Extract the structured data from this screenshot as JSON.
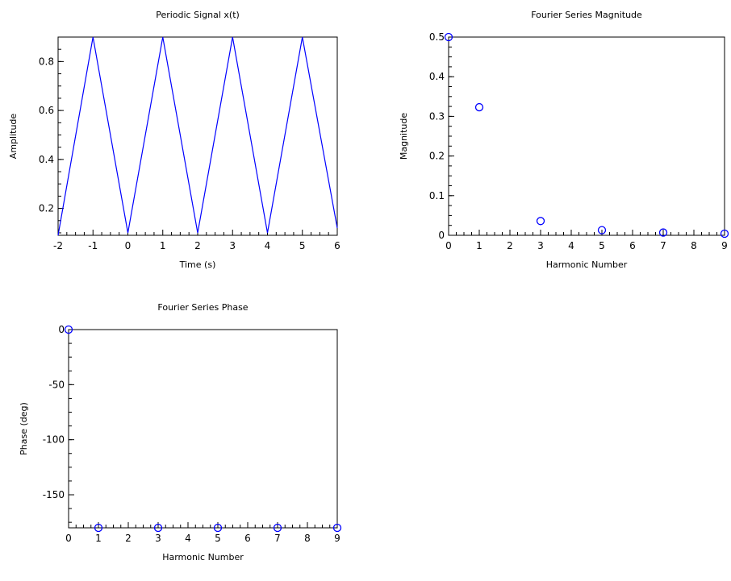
{
  "chart_data": [
    {
      "type": "line",
      "title": "Periodic Signal x(t)",
      "xlabel": "Time (s)",
      "ylabel": "Amplitude",
      "xlim": [
        -2,
        6
      ],
      "ylim": [
        0.09,
        0.9
      ],
      "xticks": [
        "-2",
        "-1",
        "0",
        "1",
        "2",
        "3",
        "4",
        "5",
        "6"
      ],
      "yticks": [
        "0.2",
        "0.4",
        "0.6",
        "0.8"
      ],
      "grid": false,
      "series": [
        {
          "color": "#0000ff",
          "x": [
            -2,
            -1,
            0,
            1,
            2,
            3,
            4,
            5,
            6
          ],
          "y": [
            0.09,
            0.9,
            0.1,
            0.9,
            0.1,
            0.9,
            0.1,
            0.9,
            0.12
          ]
        }
      ]
    },
    {
      "type": "scatter",
      "title": "Fourier Series Magnitude",
      "xlabel": "Harmonic Number",
      "ylabel": "Magnitude",
      "xlim": [
        0,
        9
      ],
      "ylim": [
        0,
        0.5
      ],
      "xticks": [
        "0",
        "1",
        "2",
        "3",
        "4",
        "5",
        "6",
        "7",
        "8",
        "9"
      ],
      "yticks": [
        "0",
        "0.1",
        "0.2",
        "0.3",
        "0.4",
        "0.5"
      ],
      "grid": false,
      "series": [
        {
          "color": "#0000ff",
          "marker": "circle",
          "x": [
            0,
            1,
            3,
            5,
            7,
            9
          ],
          "y": [
            0.5,
            0.323,
            0.036,
            0.013,
            0.007,
            0.004
          ]
        }
      ]
    },
    {
      "type": "scatter",
      "title": "Fourier Series Phase",
      "xlabel": "Harmonic Number",
      "ylabel": "Phase (deg)",
      "xlim": [
        0,
        9
      ],
      "ylim": [
        -180,
        0
      ],
      "xticks": [
        "0",
        "1",
        "2",
        "3",
        "4",
        "5",
        "6",
        "7",
        "8",
        "9"
      ],
      "yticks": [
        "-150",
        "-100",
        "-50",
        "0"
      ],
      "grid": false,
      "series": [
        {
          "color": "#0000ff",
          "marker": "circle",
          "x": [
            0,
            1,
            3,
            5,
            7,
            9
          ],
          "y": [
            0,
            -180,
            -180,
            -180,
            -180,
            -180
          ]
        }
      ]
    }
  ]
}
